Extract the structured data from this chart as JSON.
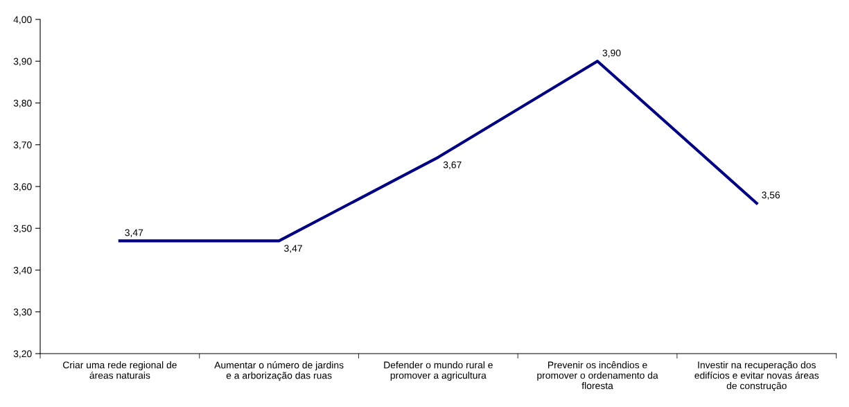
{
  "chart_data": {
    "type": "line",
    "categories": [
      "Criar uma rede regional de\náreas naturais",
      "Aumentar o número de jardins\ne a arborização das ruas",
      "Defender o mundo rural e\npromover a agricultura",
      "Prevenir os incêndios e\npromover o ordenamento da\nfloresta",
      "Investir na recuperação dos\nedifícios e evitar novas áreas\nde construção"
    ],
    "series": [
      {
        "color": "#000080",
        "values": [
          3.47,
          3.47,
          3.67,
          3.9,
          3.56
        ],
        "value_labels": [
          "3,47",
          "3,47",
          "3,67",
          "3,90",
          "3,56"
        ]
      }
    ],
    "ylim": [
      3.2,
      4.0
    ],
    "yticks": [
      {
        "value": 3.2,
        "label": "3,20"
      },
      {
        "value": 3.3,
        "label": "3,30"
      },
      {
        "value": 3.4,
        "label": "3,40"
      },
      {
        "value": 3.5,
        "label": "3,50"
      },
      {
        "value": 3.6,
        "label": "3,60"
      },
      {
        "value": 3.7,
        "label": "3,70"
      },
      {
        "value": 3.8,
        "label": "3,80"
      },
      {
        "value": 3.9,
        "label": "3,90"
      },
      {
        "value": 4.0,
        "label": "4,00"
      }
    ],
    "grid": false,
    "legend": false,
    "marker": "none",
    "line_style": "solid"
  }
}
